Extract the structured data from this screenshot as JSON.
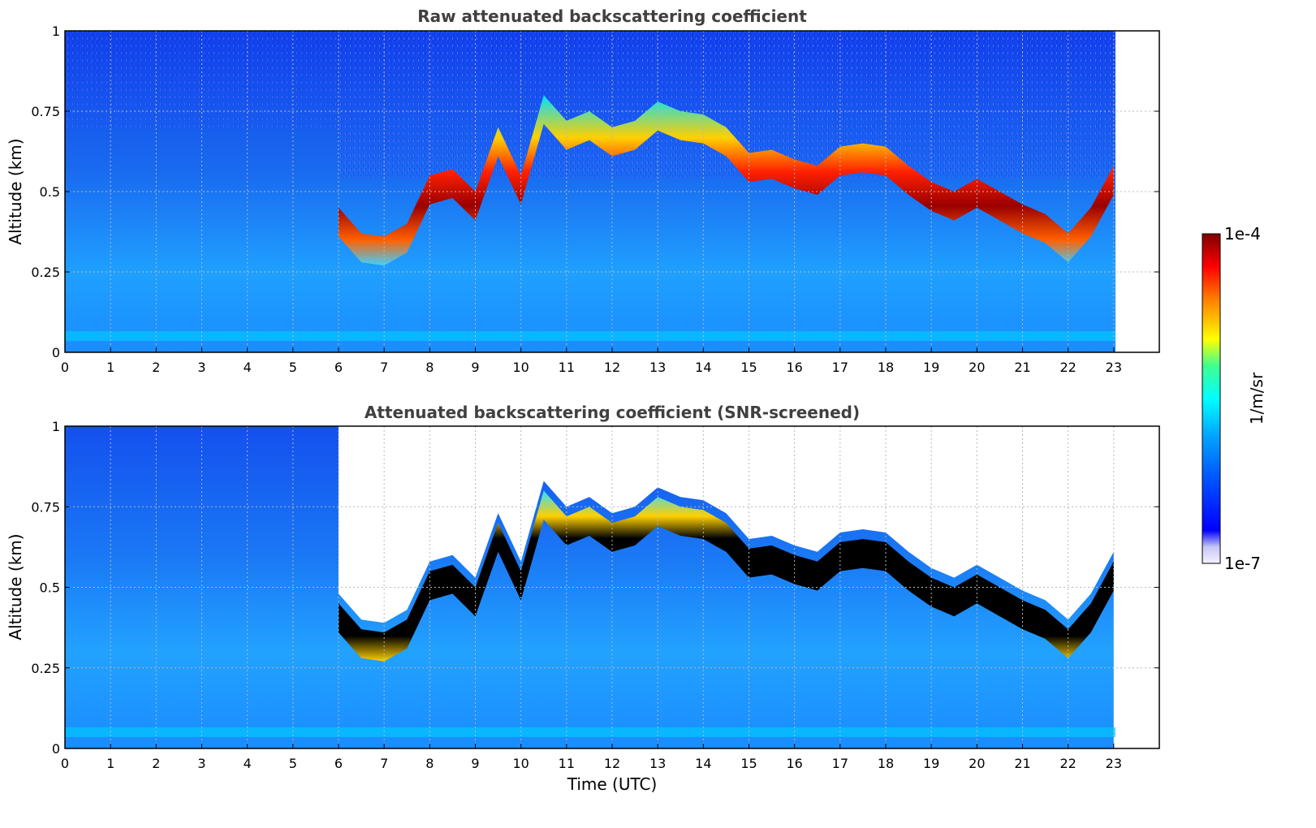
{
  "chart_data": [
    {
      "type": "heatmap",
      "title": "Raw attenuated backscattering coefficient",
      "xlabel": "",
      "ylabel": "Altitude (km)",
      "xlim": [
        0,
        24
      ],
      "ylim": [
        0,
        1
      ],
      "xticks": [
        "0",
        "1",
        "2",
        "3",
        "4",
        "5",
        "6",
        "7",
        "8",
        "9",
        "10",
        "11",
        "12",
        "13",
        "14",
        "15",
        "16",
        "17",
        "18",
        "19",
        "20",
        "21",
        "22",
        "23"
      ],
      "yticks": [
        "0",
        "0.25",
        "0.5",
        "0.75",
        "1"
      ],
      "data_end_hour": 23,
      "grid": true,
      "layer_top_km": [
        [
          6.0,
          0.45
        ],
        [
          6.5,
          0.37
        ],
        [
          7.0,
          0.36
        ],
        [
          7.5,
          0.4
        ],
        [
          8.0,
          0.55
        ],
        [
          8.5,
          0.57
        ],
        [
          9.0,
          0.5
        ],
        [
          9.5,
          0.7
        ],
        [
          10.0,
          0.55
        ],
        [
          10.5,
          0.8
        ],
        [
          11.0,
          0.72
        ],
        [
          11.5,
          0.75
        ],
        [
          12.0,
          0.7
        ],
        [
          12.5,
          0.72
        ],
        [
          13.0,
          0.78
        ],
        [
          13.5,
          0.75
        ],
        [
          14.0,
          0.74
        ],
        [
          14.5,
          0.7
        ],
        [
          15.0,
          0.62
        ],
        [
          15.5,
          0.63
        ],
        [
          16.0,
          0.6
        ],
        [
          16.5,
          0.58
        ],
        [
          17.0,
          0.64
        ],
        [
          17.5,
          0.65
        ],
        [
          18.0,
          0.64
        ],
        [
          18.5,
          0.58
        ],
        [
          19.0,
          0.53
        ],
        [
          19.5,
          0.5
        ],
        [
          20.0,
          0.54
        ],
        [
          20.5,
          0.5
        ],
        [
          21.0,
          0.46
        ],
        [
          21.5,
          0.43
        ],
        [
          22.0,
          0.37
        ],
        [
          22.5,
          0.45
        ],
        [
          23.0,
          0.58
        ]
      ]
    },
    {
      "type": "heatmap",
      "title": "Attenuated backscattering coefficient (SNR-screened)",
      "xlabel": "Time (UTC)",
      "ylabel": "Altitude (km)",
      "xlim": [
        0,
        24
      ],
      "ylim": [
        0,
        1
      ],
      "xticks": [
        "0",
        "1",
        "2",
        "3",
        "4",
        "5",
        "6",
        "7",
        "8",
        "9",
        "10",
        "11",
        "12",
        "13",
        "14",
        "15",
        "16",
        "17",
        "18",
        "19",
        "20",
        "21",
        "22",
        "23"
      ],
      "yticks": [
        "0",
        "0.25",
        "0.5",
        "0.75",
        "1"
      ],
      "data_end_hour": 23,
      "grid": true,
      "masked_above_layer": true
    }
  ],
  "colorbar": {
    "label": "1/m/sr",
    "max_label": "1e-4",
    "min_label": "1e-7",
    "scale": "log",
    "range": [
      1e-07,
      0.0001
    ],
    "colormap": [
      "#f4f2fe",
      "#c6c6f4",
      "#0000ff",
      "#0050ff",
      "#00a0ff",
      "#00ffff",
      "#40ff90",
      "#ffff00",
      "#ff8000",
      "#ff0000",
      "#800000"
    ]
  }
}
